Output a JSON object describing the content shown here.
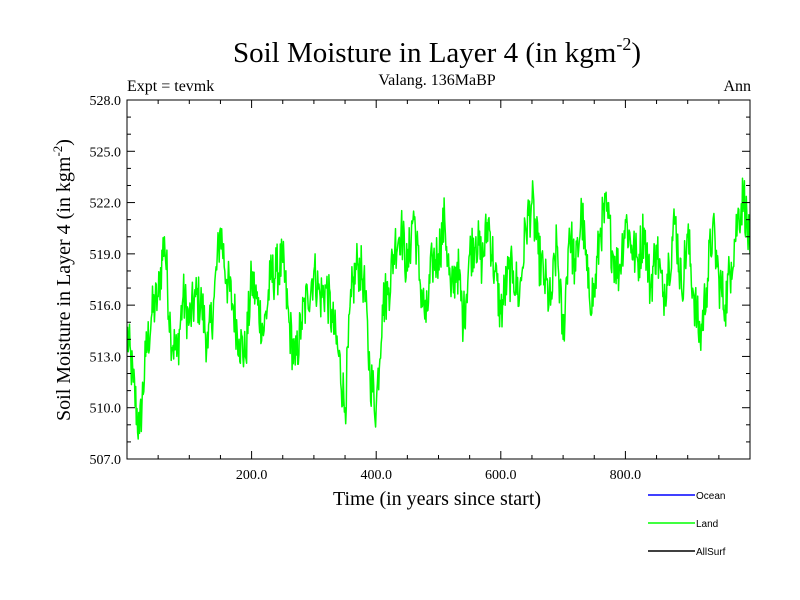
{
  "chart_data": {
    "type": "line",
    "title_main": "Soil Moisture in Layer 4 (in kgm",
    "title_exp": "-2",
    "title_close": ")",
    "left_label": "Expt = tevmk",
    "center_label": "Valang. 136MaBP",
    "right_label": "Ann",
    "xlabel": "Time (in years since start)",
    "ylabel_main": "Soil Moisture in Layer 4 (in kgm",
    "ylabel_exp": "-2",
    "ylabel_close": ")",
    "xlim": [
      0,
      1000
    ],
    "ylim": [
      507,
      528
    ],
    "x_ticks": [
      200,
      400,
      600,
      800
    ],
    "x_tick_labels": [
      "200.0",
      "400.0",
      "600.0",
      "800.0"
    ],
    "y_ticks": [
      507,
      510,
      513,
      516,
      519,
      522,
      525,
      528
    ],
    "y_tick_labels": [
      "507.0",
      "510.0",
      "513.0",
      "516.0",
      "519.0",
      "522.0",
      "525.0",
      "528.0"
    ],
    "legend": [
      {
        "name": "Ocean",
        "color": "#0000ff"
      },
      {
        "name": "Land",
        "color": "#00ff00"
      },
      {
        "name": "AllSurf",
        "color": "#000000"
      }
    ],
    "series": [
      {
        "name": "Land",
        "color": "#00ff00",
        "x": [
          0,
          10,
          20,
          30,
          40,
          50,
          60,
          70,
          80,
          90,
          100,
          110,
          120,
          130,
          140,
          150,
          160,
          170,
          180,
          190,
          200,
          210,
          220,
          230,
          240,
          250,
          260,
          270,
          280,
          290,
          300,
          310,
          320,
          330,
          340,
          350,
          360,
          370,
          380,
          390,
          400,
          410,
          420,
          430,
          440,
          450,
          460,
          470,
          480,
          490,
          500,
          510,
          520,
          530,
          540,
          550,
          560,
          570,
          580,
          590,
          600,
          610,
          620,
          630,
          640,
          650,
          660,
          670,
          680,
          690,
          700,
          710,
          720,
          730,
          740,
          750,
          760,
          770,
          780,
          790,
          800,
          810,
          820,
          830,
          840,
          850,
          860,
          870,
          880,
          890,
          900,
          910,
          920,
          930,
          940,
          950,
          960,
          970,
          980,
          990,
          1000
        ],
        "y": [
          514.5,
          511.5,
          508.5,
          513.0,
          515.5,
          516.5,
          520.0,
          514.5,
          513.0,
          516.5,
          515.0,
          516.5,
          516.0,
          513.5,
          516.5,
          520.5,
          517.5,
          516.0,
          514.0,
          513.0,
          517.5,
          516.0,
          514.5,
          517.5,
          518.0,
          518.5,
          515.0,
          512.5,
          515.0,
          516.5,
          518.0,
          516.5,
          517.0,
          515.0,
          513.0,
          510.0,
          516.5,
          518.5,
          517.5,
          512.0,
          510.0,
          516.0,
          517.0,
          519.5,
          520.5,
          518.0,
          521.5,
          517.5,
          515.0,
          518.5,
          519.0,
          521.0,
          516.5,
          518.5,
          515.0,
          519.0,
          520.0,
          518.5,
          521.0,
          518.0,
          515.5,
          517.5,
          518.0,
          516.5,
          520.5,
          522.0,
          519.0,
          517.5,
          516.0,
          519.5,
          514.0,
          520.5,
          518.0,
          521.5,
          517.0,
          516.5,
          520.5,
          521.5,
          519.0,
          518.0,
          521.0,
          519.5,
          518.5,
          520.5,
          517.0,
          519.5,
          516.5,
          518.5,
          521.0,
          517.0,
          520.0,
          516.5,
          514.0,
          517.0,
          520.5,
          517.5,
          516.0,
          518.5,
          521.0,
          522.5,
          519.0
        ]
      }
    ]
  }
}
